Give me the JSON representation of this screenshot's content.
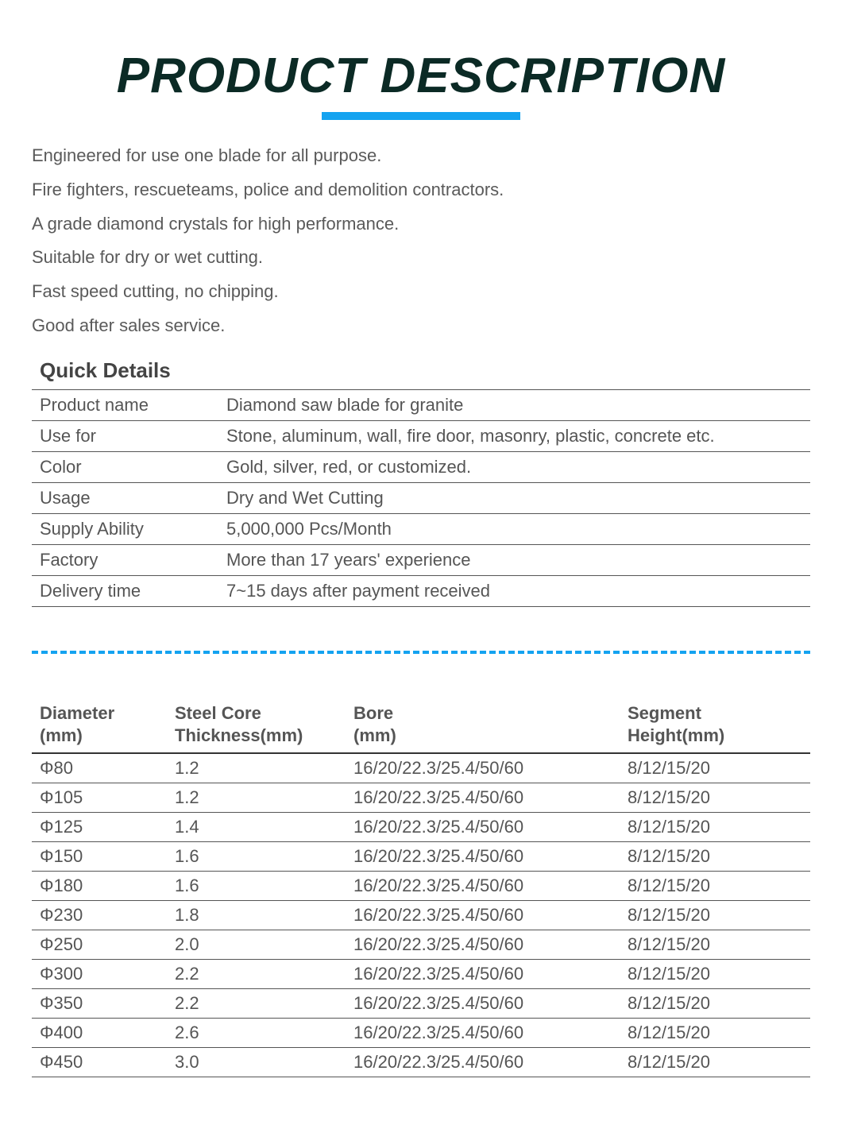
{
  "title": "PRODUCT DESCRIPTION",
  "underline_color": "#14a3f0",
  "title_color": "#0b2a25",
  "text_color": "#555555",
  "descriptions": [
    "Engineered for use one blade for all purpose.",
    "Fire fighters, rescueteams, police and demolition contractors.",
    "A grade diamond crystals for high performance.",
    "Suitable for dry or wet cutting.",
    "Fast speed cutting, no chipping.",
    "Good after sales service."
  ],
  "quick_details": {
    "heading": "Quick Details",
    "rows": [
      {
        "label": "Product name",
        "value": "Diamond saw blade for granite"
      },
      {
        "label": "Use for",
        "value": "Stone, aluminum, wall, fire door, masonry, plastic, concrete etc."
      },
      {
        "label": "Color",
        "value": "Gold, silver, red, or customized."
      },
      {
        "label": "Usage",
        "value": "Dry and Wet Cutting"
      },
      {
        "label": "Supply Ability",
        "value": "5,000,000 Pcs/Month"
      },
      {
        "label": "Factory",
        "value": "More than 17 years' experience"
      },
      {
        "label": "Delivery time",
        "value": "7~15 days after payment received"
      }
    ]
  },
  "spec_table": {
    "columns": [
      {
        "line1": "Diameter",
        "line2": "(mm)"
      },
      {
        "line1": "Steel Core",
        "line2": "Thickness(mm)"
      },
      {
        "line1": "Bore",
        "line2": " (mm)"
      },
      {
        "line1": "Segment",
        "line2": "Height(mm)"
      }
    ],
    "rows": [
      {
        "diameter": "Φ80",
        "thickness": "1.2",
        "bore": "16/20/22.3/25.4/50/60",
        "segment": "8/12/15/20"
      },
      {
        "diameter": "Φ105",
        "thickness": "1.2",
        "bore": "16/20/22.3/25.4/50/60",
        "segment": "8/12/15/20"
      },
      {
        "diameter": "Φ125",
        "thickness": "1.4",
        "bore": "16/20/22.3/25.4/50/60",
        "segment": "8/12/15/20"
      },
      {
        "diameter": "Φ150",
        "thickness": "1.6",
        "bore": "16/20/22.3/25.4/50/60",
        "segment": "8/12/15/20"
      },
      {
        "diameter": "Φ180",
        "thickness": "1.6",
        "bore": "16/20/22.3/25.4/50/60",
        "segment": "8/12/15/20"
      },
      {
        "diameter": "Φ230",
        "thickness": "1.8",
        "bore": "16/20/22.3/25.4/50/60",
        "segment": "8/12/15/20"
      },
      {
        "diameter": "Φ250",
        "thickness": "2.0",
        "bore": "16/20/22.3/25.4/50/60",
        "segment": "8/12/15/20"
      },
      {
        "diameter": "Φ300",
        "thickness": "2.2",
        "bore": "16/20/22.3/25.4/50/60",
        "segment": "8/12/15/20"
      },
      {
        "diameter": "Φ350",
        "thickness": "2.2",
        "bore": "16/20/22.3/25.4/50/60",
        "segment": "8/12/15/20"
      },
      {
        "diameter": "Φ400",
        "thickness": "2.6",
        "bore": "16/20/22.3/25.4/50/60",
        "segment": "8/12/15/20"
      },
      {
        "diameter": "Φ450",
        "thickness": "3.0",
        "bore": "16/20/22.3/25.4/50/60",
        "segment": "8/12/15/20"
      }
    ]
  }
}
